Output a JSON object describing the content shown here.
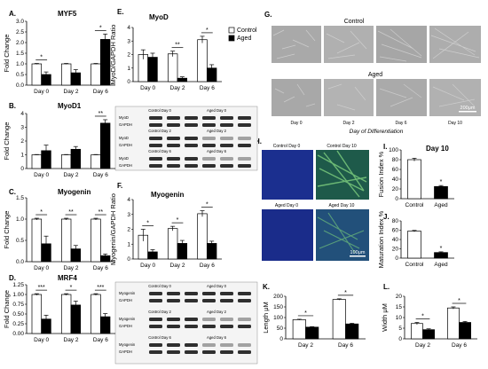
{
  "chart_data": [
    {
      "id": "A",
      "panel_label": "A.",
      "title": "MYF5",
      "type": "bar",
      "ylabel": "Fold Change",
      "ylim": [
        0,
        3.0
      ],
      "yticks": [
        "0.0",
        "0.5",
        "1.0",
        "1.5",
        "2.0",
        "2.5",
        "3.0"
      ],
      "categories": [
        "Day 0",
        "Day 2",
        "Day 6"
      ],
      "series": [
        {
          "values": [
            1.0,
            1.0,
            1.0
          ],
          "errors": [
            0.02,
            0.02,
            0.02
          ],
          "color": "#ffffff"
        },
        {
          "values": [
            0.5,
            0.58,
            2.15
          ],
          "errors": [
            0.12,
            0.15,
            0.25
          ],
          "color": "#000000"
        }
      ],
      "significance": [
        {
          "category": 0,
          "text": "*"
        },
        {
          "category": 2,
          "text": "*"
        }
      ]
    },
    {
      "id": "B",
      "panel_label": "B.",
      "title": "MyoD1",
      "type": "bar",
      "ylabel": "Fold Change",
      "ylim": [
        0,
        4
      ],
      "yticks": [
        "0",
        "1",
        "2",
        "3",
        "4"
      ],
      "categories": [
        "Day 0",
        "Day 2",
        "Day 6"
      ],
      "series": [
        {
          "values": [
            1.0,
            1.0,
            1.0
          ],
          "errors": [
            0.02,
            0.02,
            0.02
          ],
          "color": "#ffffff"
        },
        {
          "values": [
            1.3,
            1.4,
            3.3
          ],
          "errors": [
            0.4,
            0.2,
            0.25
          ],
          "color": "#000000"
        }
      ],
      "significance": [
        {
          "category": 2,
          "text": "**"
        }
      ]
    },
    {
      "id": "C",
      "panel_label": "C.",
      "title": "Myogenin",
      "type": "bar",
      "ylabel": "Fold Change",
      "ylim": [
        0,
        1.5
      ],
      "yticks": [
        "0.0",
        "0.5",
        "1.0",
        "1.5"
      ],
      "categories": [
        "Day 0",
        "Day 2",
        "Day 6"
      ],
      "series": [
        {
          "values": [
            1.0,
            1.0,
            1.0
          ],
          "errors": [
            0.02,
            0.02,
            0.02
          ],
          "color": "#ffffff"
        },
        {
          "values": [
            0.42,
            0.3,
            0.14
          ],
          "errors": [
            0.18,
            0.08,
            0.04
          ],
          "color": "#000000"
        }
      ],
      "significance": [
        {
          "category": 0,
          "text": "*"
        },
        {
          "category": 1,
          "text": "**"
        },
        {
          "category": 2,
          "text": "**"
        }
      ]
    },
    {
      "id": "D",
      "panel_label": "D.",
      "title": "MRF4",
      "type": "bar",
      "ylabel": "Fold Change",
      "ylim": [
        0,
        1.25
      ],
      "yticks": [
        "0.00",
        "0.25",
        "0.50",
        "0.75",
        "1.00",
        "1.25"
      ],
      "categories": [
        "Day 0",
        "Day 2",
        "Day 6"
      ],
      "series": [
        {
          "values": [
            1.0,
            1.0,
            1.0
          ],
          "errors": [
            0.02,
            0.02,
            0.02
          ],
          "color": "#ffffff"
        },
        {
          "values": [
            0.37,
            0.73,
            0.43
          ],
          "errors": [
            0.1,
            0.1,
            0.08
          ],
          "color": "#000000"
        }
      ],
      "significance": [
        {
          "category": 0,
          "text": "***"
        },
        {
          "category": 1,
          "text": "*"
        },
        {
          "category": 2,
          "text": "***"
        }
      ]
    },
    {
      "id": "E",
      "panel_label": "E.",
      "title": "MyoD",
      "type": "bar",
      "ylabel": "MyoD/GAPDH Ratio",
      "ylim": [
        0,
        4
      ],
      "yticks": [
        "0",
        "1",
        "2",
        "3",
        "4"
      ],
      "categories": [
        "Day 0",
        "Day 2",
        "Day 6"
      ],
      "legend": [
        "Control",
        "Aged"
      ],
      "series": [
        {
          "name": "Control",
          "values": [
            2.0,
            2.05,
            3.1
          ],
          "errors": [
            0.35,
            0.2,
            0.25
          ],
          "color": "#ffffff"
        },
        {
          "name": "Aged",
          "values": [
            1.8,
            0.25,
            1.0
          ],
          "errors": [
            0.3,
            0.1,
            0.25
          ],
          "color": "#000000"
        }
      ],
      "significance": [
        {
          "category": 1,
          "text": "**"
        },
        {
          "category": 2,
          "text": "*"
        }
      ]
    },
    {
      "id": "F",
      "panel_label": "F.",
      "title": "Myogenin",
      "type": "bar",
      "ylabel": "Myogenin/GAPDH Ratio",
      "ylim": [
        0,
        4
      ],
      "yticks": [
        "0",
        "1",
        "2",
        "3",
        "4"
      ],
      "categories": [
        "Day 0",
        "Day 2",
        "Day 6"
      ],
      "series": [
        {
          "values": [
            1.6,
            2.05,
            3.05
          ],
          "errors": [
            0.4,
            0.15,
            0.2
          ],
          "color": "#ffffff"
        },
        {
          "values": [
            0.48,
            1.05,
            1.05
          ],
          "errors": [
            0.15,
            0.2,
            0.15
          ],
          "color": "#000000"
        }
      ],
      "significance": [
        {
          "category": 0,
          "text": "*"
        },
        {
          "category": 1,
          "text": "*"
        },
        {
          "category": 2,
          "text": "*"
        }
      ]
    },
    {
      "id": "I",
      "panel_label": "I.",
      "title": "Day 10",
      "type": "bar",
      "ylabel": "Fusion Index %",
      "ylim": [
        0,
        100
      ],
      "yticks": [
        "0",
        "20",
        "40",
        "60",
        "80",
        "100"
      ],
      "categories": [
        "Control",
        "Aged"
      ],
      "series": [
        {
          "values": [
            80,
            25
          ],
          "errors": [
            3,
            2
          ],
          "colors": [
            "#ffffff",
            "#000000"
          ]
        }
      ],
      "significance": [
        {
          "category": 1,
          "text": "*"
        }
      ]
    },
    {
      "id": "J",
      "panel_label": "J.",
      "title": "",
      "type": "bar",
      "ylabel": "Maturation Index %",
      "ylim": [
        0,
        80
      ],
      "yticks": [
        "0",
        "20",
        "40",
        "60",
        "80"
      ],
      "categories": [
        "Control",
        "Aged"
      ],
      "series": [
        {
          "values": [
            58,
            12
          ],
          "errors": [
            1.5,
            1.5
          ],
          "colors": [
            "#ffffff",
            "#000000"
          ]
        }
      ],
      "significance": [
        {
          "category": 1,
          "text": "*"
        }
      ]
    },
    {
      "id": "K",
      "panel_label": "K.",
      "title": "",
      "type": "bar",
      "ylabel": "Length μM",
      "ylim": [
        0,
        200
      ],
      "yticks": [
        "0",
        "50",
        "100",
        "150",
        "200"
      ],
      "categories": [
        "Day 2",
        "Day 6"
      ],
      "series": [
        {
          "values": [
            90,
            185
          ],
          "errors": [
            2,
            3
          ],
          "color": "#ffffff"
        },
        {
          "values": [
            55,
            70
          ],
          "errors": [
            2,
            3
          ],
          "color": "#000000"
        }
      ],
      "significance": [
        {
          "category": 0,
          "text": "*"
        },
        {
          "category": 1,
          "text": "*"
        }
      ]
    },
    {
      "id": "L",
      "panel_label": "L.",
      "title": "",
      "type": "bar",
      "ylabel": "Width μM",
      "ylim": [
        0,
        20
      ],
      "yticks": [
        "0",
        "5",
        "10",
        "15",
        "20"
      ],
      "categories": [
        "Day 2",
        "Day 6"
      ],
      "series": [
        {
          "values": [
            7.2,
            14.5
          ],
          "errors": [
            0.5,
            0.5
          ],
          "color": "#ffffff"
        },
        {
          "values": [
            4.3,
            7.7
          ],
          "errors": [
            0.4,
            0.5
          ],
          "color": "#000000"
        }
      ],
      "significance": [
        {
          "category": 0,
          "text": "*"
        },
        {
          "category": 1,
          "text": "*"
        }
      ]
    }
  ],
  "blots": {
    "E": {
      "rows": [
        {
          "header_left": "Control Day 0",
          "header_right": "Aged Day 0",
          "bands": [
            "MyoD",
            "GAPDH"
          ]
        },
        {
          "header_left": "Control Day 2",
          "header_right": "Aged Day 2",
          "bands": [
            "MyoD",
            "GAPDH"
          ]
        },
        {
          "header_left": "Control Day 6",
          "header_right": "Aged Day 6",
          "bands": [
            "MyoD",
            "GAPDH"
          ]
        }
      ]
    },
    "F": {
      "rows": [
        {
          "header_left": "Control Day 0",
          "header_right": "Aged Day 0",
          "bands": [
            "Myogenin",
            "GAPDH"
          ]
        },
        {
          "header_left": "Control Day 2",
          "header_right": "Aged Day 2",
          "bands": [
            "Myogenin",
            "GAPDH"
          ]
        },
        {
          "header_left": "Control Day 6",
          "header_right": "Aged Day 6",
          "bands": [
            "Myogenin",
            "GAPDH"
          ]
        }
      ]
    }
  },
  "panel_g": {
    "label": "G.",
    "control_label": "Control",
    "aged_label": "Aged",
    "days": [
      "Day 0",
      "Day 2",
      "Day 6",
      "Day 10"
    ],
    "xlabel": "Day of Differentiation",
    "scalebar": "200μm"
  },
  "panel_h": {
    "label": "H.",
    "titles": [
      "Control Day 0",
      "Control Day 10",
      "Aged Day 0",
      "Aged Day 10"
    ],
    "scalebar": "100μm"
  }
}
